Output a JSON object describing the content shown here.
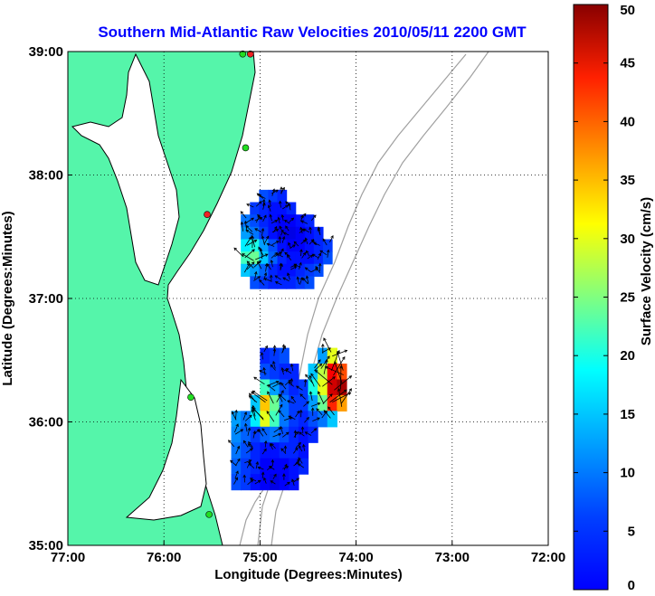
{
  "chart_data": {
    "type": "heatmap",
    "title": "Southern Mid-Atlantic Raw Velocities 2010/05/11 2200 GMT",
    "xlabel": "Longitude (Degrees:Minutes)",
    "ylabel": "Latitude (Degrees:Minutes)",
    "colorbar_label": "Surface Velocity (cm/s)",
    "xlim": [
      -77,
      -72
    ],
    "ylim": [
      35,
      39
    ],
    "x_ticks": [
      {
        "value": -77,
        "label": "77:00"
      },
      {
        "value": -76,
        "label": "76:00"
      },
      {
        "value": -75,
        "label": "75:00"
      },
      {
        "value": -74,
        "label": "74:00"
      },
      {
        "value": -73,
        "label": "73:00"
      },
      {
        "value": -72,
        "label": "72:00"
      }
    ],
    "y_ticks": [
      {
        "value": 35,
        "label": "35:00"
      },
      {
        "value": 36,
        "label": "36:00"
      },
      {
        "value": 37,
        "label": "37:00"
      },
      {
        "value": 38,
        "label": "38:00"
      },
      {
        "value": 39,
        "label": "39:00"
      }
    ],
    "colorbar_range": [
      0,
      50
    ],
    "colorbar_ticks": [
      {
        "value": 0,
        "label": "0"
      },
      {
        "value": 5,
        "label": "5"
      },
      {
        "value": 10,
        "label": "10"
      },
      {
        "value": 15,
        "label": "15"
      },
      {
        "value": 20,
        "label": "20"
      },
      {
        "value": 25,
        "label": "25"
      },
      {
        "value": 30,
        "label": "30"
      },
      {
        "value": 35,
        "label": "35"
      },
      {
        "value": 40,
        "label": "40"
      },
      {
        "value": 45,
        "label": "45"
      },
      {
        "value": 50,
        "label": "50"
      }
    ],
    "grid": true,
    "colormap": "jet",
    "colors": {
      "title": "#0000ff",
      "land": "#55f5aa",
      "water": "#ffffff",
      "coastline": "#000000",
      "bathymetry": "#a0a0a0",
      "site_green": "#22dd22",
      "site_red": "#ee2222"
    },
    "stations": [
      {
        "lon": -75.1,
        "lat": 38.98,
        "status": "red"
      },
      {
        "lon": -75.18,
        "lat": 38.98,
        "status": "green"
      },
      {
        "lon": -75.15,
        "lat": 38.22,
        "status": "green"
      },
      {
        "lon": -75.55,
        "lat": 37.68,
        "status": "red"
      },
      {
        "lon": -75.72,
        "lat": 36.2,
        "status": "green"
      },
      {
        "lon": -75.53,
        "lat": 35.25,
        "status": "green"
      }
    ],
    "northern_patch": {
      "speed_cm_s": [
        [
          null,
          null,
          10,
          9,
          8,
          null,
          null,
          null,
          null,
          null
        ],
        [
          null,
          9,
          8,
          7,
          7,
          8,
          null,
          null,
          null,
          null
        ],
        [
          12,
          10,
          8,
          7,
          6,
          6,
          7,
          8,
          null,
          null
        ],
        [
          14,
          12,
          9,
          7,
          5,
          5,
          6,
          7,
          8,
          null
        ],
        [
          18,
          20,
          14,
          10,
          7,
          6,
          6,
          7,
          8,
          9
        ],
        [
          22,
          24,
          16,
          11,
          8,
          7,
          7,
          7,
          8,
          10
        ],
        [
          16,
          14,
          11,
          8,
          7,
          7,
          8,
          9,
          10,
          null
        ],
        [
          null,
          10,
          9,
          8,
          8,
          8,
          9,
          10,
          null,
          null
        ]
      ],
      "lon_range": [
        -75.2,
        -74.25
      ],
      "lat_range": [
        37.08,
        37.88
      ]
    },
    "southern_patch": {
      "speed_cm_s": [
        [
          null,
          null,
          null,
          8,
          9,
          10,
          null,
          null,
          null,
          14,
          30,
          null
        ],
        [
          null,
          null,
          null,
          10,
          9,
          8,
          8,
          null,
          16,
          28,
          44,
          40
        ],
        [
          null,
          null,
          null,
          22,
          14,
          10,
          8,
          9,
          20,
          30,
          46,
          48
        ],
        [
          null,
          null,
          16,
          34,
          24,
          12,
          9,
          9,
          14,
          24,
          42,
          36
        ],
        [
          14,
          12,
          18,
          30,
          22,
          12,
          9,
          8,
          10,
          12,
          16,
          null
        ],
        [
          13,
          11,
          9,
          11,
          12,
          10,
          8,
          7,
          8,
          null,
          null,
          null
        ],
        [
          12,
          10,
          8,
          7,
          7,
          8,
          8,
          7,
          null,
          null,
          null,
          null
        ],
        [
          11,
          9,
          8,
          6,
          6,
          6,
          7,
          8,
          null,
          null,
          null,
          null
        ],
        [
          10,
          9,
          7,
          6,
          5,
          6,
          7,
          null,
          null,
          null,
          null,
          null
        ]
      ],
      "lon_range": [
        -75.3,
        -74.1
      ],
      "lat_range": [
        35.45,
        36.6
      ]
    }
  }
}
